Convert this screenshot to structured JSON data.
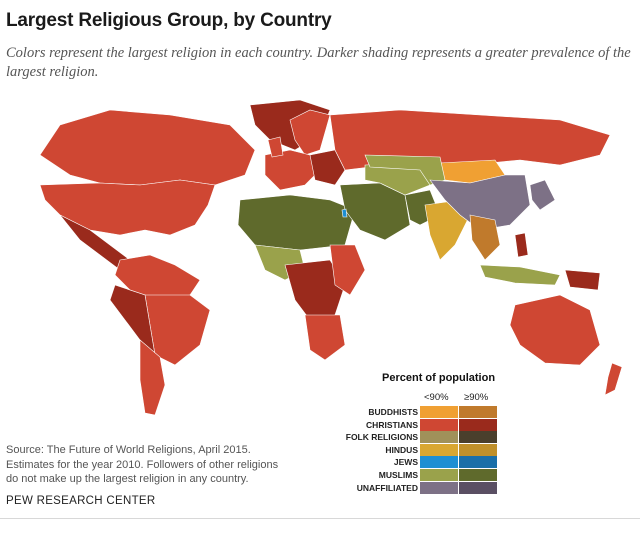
{
  "header": {
    "title": "Largest Religious Group, by Country",
    "subtitle": "Colors represent the largest religion in each country. Darker shading represents a greater prevalence of the largest religion."
  },
  "legend": {
    "title": "Percent of population",
    "col_low": "<90%",
    "col_high": "≥90%",
    "groups": [
      {
        "label": "BUDDHISTS",
        "low": "#f0a033",
        "high": "#c07a2c"
      },
      {
        "label": "CHRISTIANS",
        "low": "#cf4733",
        "high": "#9a2a1c"
      },
      {
        "label": "FOLK RELIGIONS",
        "low": "#a0915a",
        "high": "#4a3f2c"
      },
      {
        "label": "HINDUS",
        "low": "#d9a731",
        "high": "#c0902a"
      },
      {
        "label": "JEWS",
        "low": "#1d8fd3",
        "high": "#1a6fa8"
      },
      {
        "label": "MUSLIMS",
        "low": "#9aa24b",
        "high": "#5f6a2c"
      },
      {
        "label": "UNAFFILIATED",
        "low": "#7d7186",
        "high": "#5a4f63"
      }
    ]
  },
  "map_colors": {
    "ocean": "#ffffff",
    "christian_low": "#cf4733",
    "christian_high": "#9a2a1c",
    "muslim_low": "#9aa24b",
    "muslim_high": "#5f6a2c",
    "hindu": "#d9a731",
    "buddhist_low": "#f0a033",
    "buddhist_high": "#c07a2c",
    "unaffiliated": "#7d7186",
    "jews": "#1d8fd3",
    "border": "#ffffff"
  },
  "footer": {
    "source_lines": [
      "Source: The Future of World Religions, April 2015.",
      "Estimates for the year 2010. Followers of other religions",
      "do not make up the largest religion in any country."
    ],
    "org": "PEW RESEARCH CENTER"
  }
}
